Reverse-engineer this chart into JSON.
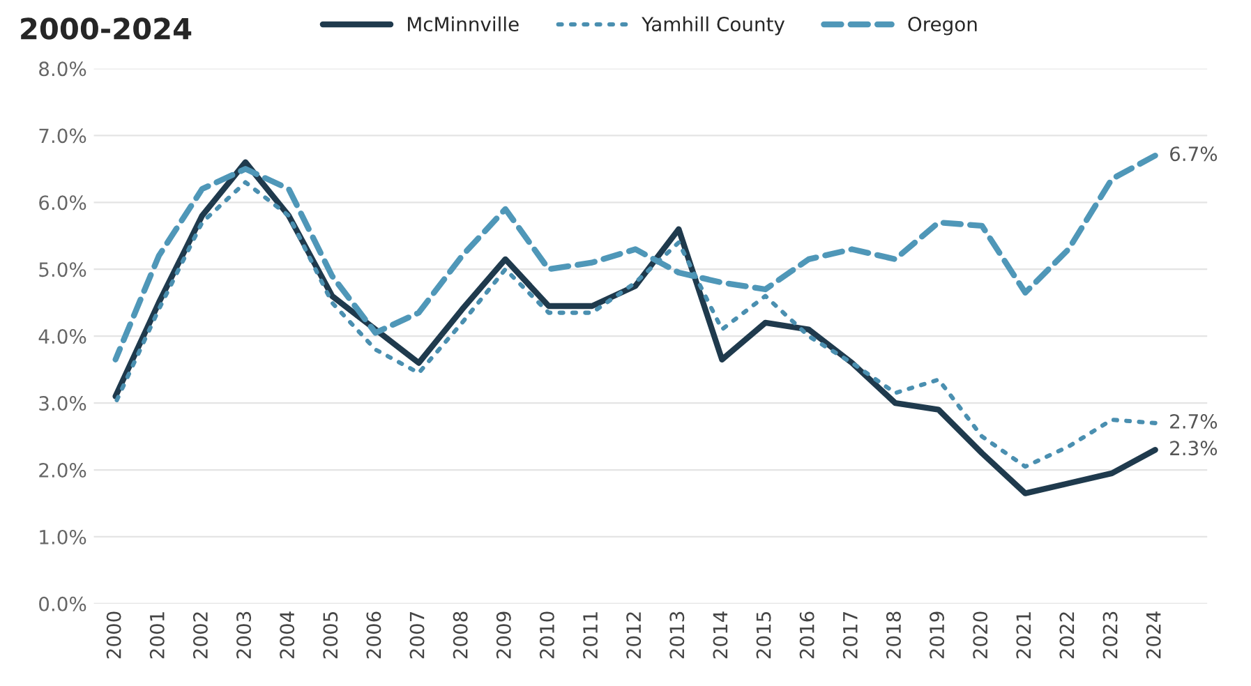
{
  "chart_data": {
    "type": "line",
    "title": "2000-2024",
    "categories": [
      "2000",
      "2001",
      "2002",
      "2003",
      "2004",
      "2005",
      "2006",
      "2007",
      "2008",
      "2009",
      "2010",
      "2011",
      "2012",
      "2013",
      "2014",
      "2015",
      "2016",
      "2017",
      "2018",
      "2019",
      "2020",
      "2021",
      "2022",
      "2023",
      "2024"
    ],
    "series": [
      {
        "name": "McMinnville",
        "color": "#1f3a4d",
        "line_style": "solid",
        "values": [
          3.1,
          4.5,
          5.8,
          6.6,
          5.8,
          4.6,
          4.1,
          3.6,
          4.4,
          5.15,
          4.45,
          4.45,
          4.75,
          5.6,
          3.65,
          4.2,
          4.1,
          3.6,
          3.0,
          2.9,
          2.25,
          1.65,
          1.8,
          1.95,
          2.3
        ],
        "value_labels": [
          null,
          null,
          null,
          null,
          null,
          null,
          null,
          null,
          null,
          null,
          null,
          null,
          null,
          null,
          null,
          null,
          null,
          null,
          null,
          null,
          null,
          null,
          null,
          null,
          "2.3%"
        ]
      },
      {
        "name": "Yamhill County",
        "color": "#4a8fb0",
        "line_style": "dotted",
        "values": [
          3.0,
          4.4,
          5.7,
          6.3,
          5.8,
          4.5,
          3.8,
          3.45,
          4.2,
          5.0,
          4.35,
          4.35,
          4.8,
          5.4,
          4.1,
          4.6,
          4.0,
          3.6,
          3.15,
          3.35,
          2.5,
          2.05,
          2.35,
          2.75,
          2.7
        ],
        "value_labels": [
          null,
          null,
          null,
          null,
          null,
          null,
          null,
          null,
          null,
          null,
          null,
          null,
          null,
          null,
          null,
          null,
          null,
          null,
          null,
          null,
          null,
          null,
          null,
          null,
          "2.7%"
        ]
      },
      {
        "name": "Oregon",
        "color": "#4f97b8",
        "line_style": "dashed",
        "values": [
          3.65,
          5.2,
          6.2,
          6.5,
          6.2,
          4.9,
          4.05,
          4.35,
          5.2,
          5.9,
          5.0,
          5.1,
          5.3,
          4.95,
          4.8,
          4.7,
          5.15,
          5.3,
          5.15,
          5.7,
          5.65,
          4.65,
          5.3,
          6.35,
          6.7
        ],
        "value_labels": [
          null,
          null,
          null,
          null,
          null,
          null,
          null,
          null,
          null,
          null,
          null,
          null,
          null,
          null,
          null,
          null,
          null,
          null,
          null,
          null,
          null,
          null,
          null,
          null,
          "6.7%"
        ]
      }
    ],
    "ylim": [
      0,
      8
    ],
    "yticks": [
      {
        "value": 0,
        "label": "0.0%"
      },
      {
        "value": 1,
        "label": "1.0%"
      },
      {
        "value": 2,
        "label": "2.0%"
      },
      {
        "value": 3,
        "label": "3.0%"
      },
      {
        "value": 4,
        "label": "4.0%"
      },
      {
        "value": 5,
        "label": "5.0%"
      },
      {
        "value": 6,
        "label": "6.0%"
      },
      {
        "value": 7,
        "label": "7.0%"
      },
      {
        "value": 8,
        "label": "8.0%"
      }
    ],
    "grid": "y",
    "legend": "top",
    "marker": "none"
  }
}
